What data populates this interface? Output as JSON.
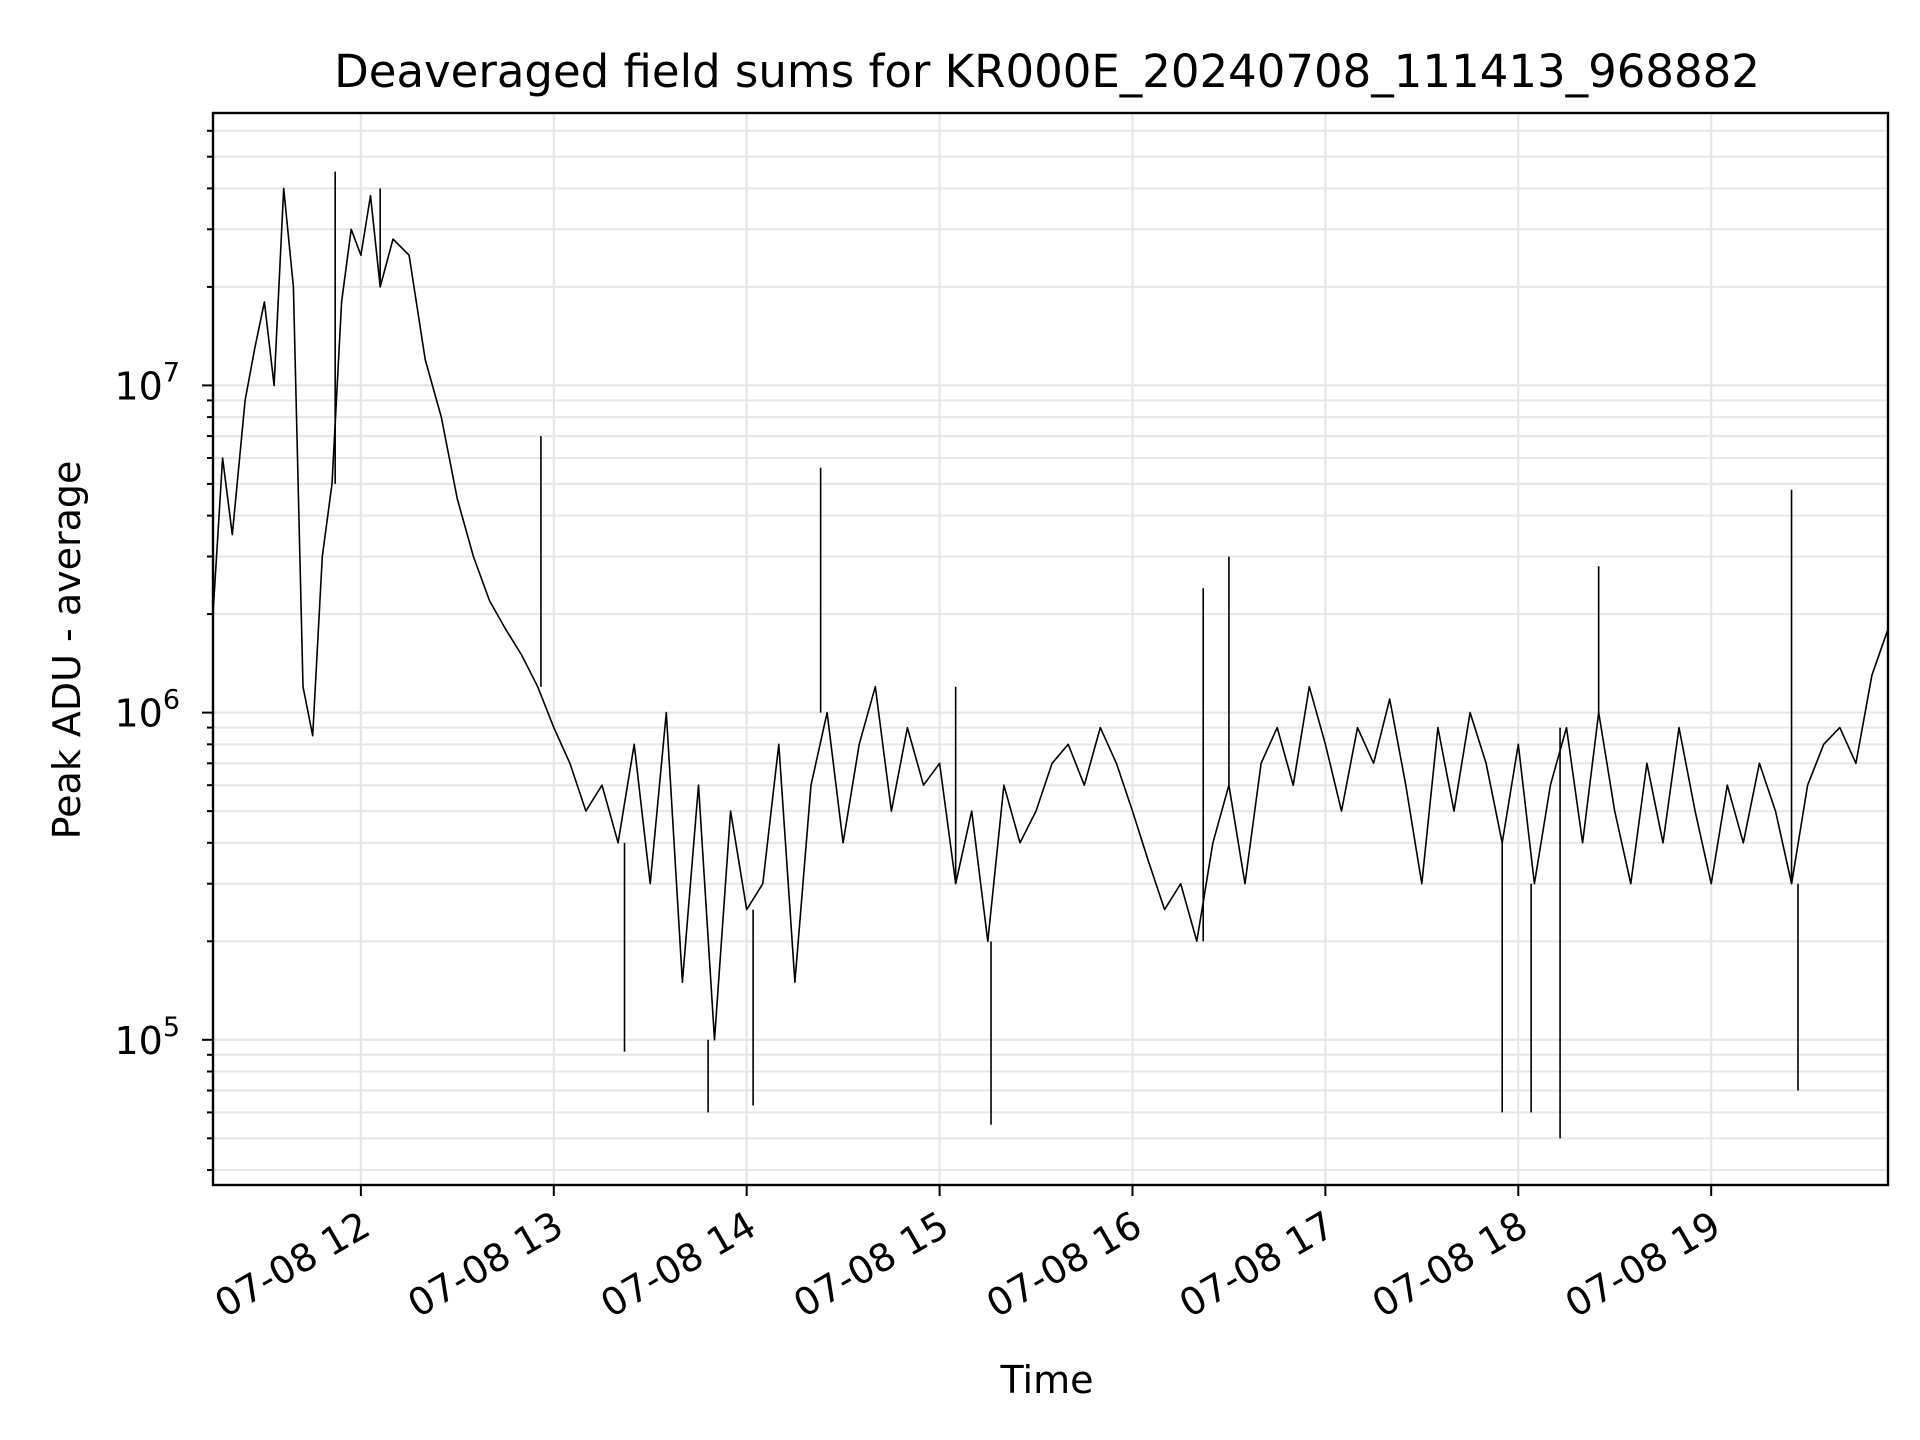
{
  "chart_data": {
    "type": "line",
    "title": "Deaveraged field sums for KR000E_20240708_111413_968882",
    "xlabel": "Time",
    "ylabel": "Peak ADU - average",
    "y_scale": "log",
    "x_range": [
      "07-08 11:14",
      "07-08 19:55"
    ],
    "ylim": [
      36000,
      68000000
    ],
    "grid": true,
    "legend": "none",
    "line_color": "#000000",
    "grid_color": "#e6e6e6",
    "x_ticks": [
      {
        "time": "07-08 12:00",
        "label": "07-08 12"
      },
      {
        "time": "07-08 13:00",
        "label": "07-08 13"
      },
      {
        "time": "07-08 14:00",
        "label": "07-08 14"
      },
      {
        "time": "07-08 15:00",
        "label": "07-08 15"
      },
      {
        "time": "07-08 16:00",
        "label": "07-08 16"
      },
      {
        "time": "07-08 17:00",
        "label": "07-08 17"
      },
      {
        "time": "07-08 18:00",
        "label": "07-08 18"
      },
      {
        "time": "07-08 19:00",
        "label": "07-08 19"
      }
    ],
    "y_ticks": [
      {
        "value": 100000,
        "base": "10",
        "exp": "5"
      },
      {
        "value": 1000000,
        "base": "10",
        "exp": "6"
      },
      {
        "value": 10000000,
        "base": "10",
        "exp": "7"
      }
    ],
    "series": [
      {
        "x": [
          "07-08 11:14",
          "07-08 11:17",
          "07-08 11:20",
          "07-08 11:24",
          "07-08 11:27",
          "07-08 11:30",
          "07-08 11:33",
          "07-08 11:36",
          "07-08 11:39",
          "07-08 11:42",
          "07-08 11:45",
          "07-08 11:48",
          "07-08 11:51",
          "07-08 11:54",
          "07-08 11:57",
          "07-08 12:00",
          "07-08 12:03",
          "07-08 12:06",
          "07-08 12:10",
          "07-08 12:15",
          "07-08 12:20",
          "07-08 12:25",
          "07-08 12:30",
          "07-08 12:35",
          "07-08 12:40",
          "07-08 12:45",
          "07-08 12:50",
          "07-08 12:55",
          "07-08 13:00",
          "07-08 13:05",
          "07-08 13:10",
          "07-08 13:15",
          "07-08 13:20",
          "07-08 13:25",
          "07-08 13:30",
          "07-08 13:35",
          "07-08 13:40",
          "07-08 13:45",
          "07-08 13:50",
          "07-08 13:55",
          "07-08 14:00",
          "07-08 14:05",
          "07-08 14:10",
          "07-08 14:15",
          "07-08 14:20",
          "07-08 14:25",
          "07-08 14:30",
          "07-08 14:35",
          "07-08 14:40",
          "07-08 14:45",
          "07-08 14:50",
          "07-08 14:55",
          "07-08 15:00",
          "07-08 15:05",
          "07-08 15:10",
          "07-08 15:15",
          "07-08 15:20",
          "07-08 15:25",
          "07-08 15:30",
          "07-08 15:35",
          "07-08 15:40",
          "07-08 15:45",
          "07-08 15:50",
          "07-08 15:55",
          "07-08 16:00",
          "07-08 16:05",
          "07-08 16:10",
          "07-08 16:15",
          "07-08 16:20",
          "07-08 16:25",
          "07-08 16:30",
          "07-08 16:35",
          "07-08 16:40",
          "07-08 16:45",
          "07-08 16:50",
          "07-08 16:55",
          "07-08 17:00",
          "07-08 17:05",
          "07-08 17:10",
          "07-08 17:15",
          "07-08 17:20",
          "07-08 17:25",
          "07-08 17:30",
          "07-08 17:35",
          "07-08 17:40",
          "07-08 17:45",
          "07-08 17:50",
          "07-08 17:55",
          "07-08 18:00",
          "07-08 18:05",
          "07-08 18:10",
          "07-08 18:15",
          "07-08 18:20",
          "07-08 18:25",
          "07-08 18:30",
          "07-08 18:35",
          "07-08 18:40",
          "07-08 18:45",
          "07-08 18:50",
          "07-08 18:55",
          "07-08 19:00",
          "07-08 19:05",
          "07-08 19:10",
          "07-08 19:15",
          "07-08 19:20",
          "07-08 19:25",
          "07-08 19:30",
          "07-08 19:35",
          "07-08 19:40",
          "07-08 19:45",
          "07-08 19:50",
          "07-08 19:55"
        ],
        "y": [
          2000000,
          6000000,
          3500000,
          9000000,
          13000000,
          18000000,
          10000000,
          40000000,
          20000000,
          1200000,
          850000,
          3000000,
          5000000,
          18000000,
          30000000,
          25000000,
          38000000,
          20000000,
          28000000,
          25000000,
          12000000,
          8000000,
          4500000,
          3000000,
          2200000,
          1800000,
          1500000,
          1200000,
          900000,
          700000,
          500000,
          600000,
          400000,
          800000,
          300000,
          1000000,
          150000,
          600000,
          100000,
          500000,
          250000,
          300000,
          800000,
          150000,
          600000,
          1000000,
          400000,
          800000,
          1200000,
          500000,
          900000,
          600000,
          700000,
          300000,
          500000,
          200000,
          600000,
          400000,
          500000,
          700000,
          800000,
          600000,
          900000,
          700000,
          500000,
          350000,
          250000,
          300000,
          200000,
          400000,
          600000,
          300000,
          700000,
          900000,
          600000,
          1200000,
          800000,
          500000,
          900000,
          700000,
          1100000,
          600000,
          300000,
          900000,
          500000,
          1000000,
          700000,
          400000,
          800000,
          300000,
          600000,
          900000,
          400000,
          1000000,
          500000,
          300000,
          700000,
          400000,
          900000,
          500000,
          300000,
          600000,
          400000,
          700000,
          500000,
          300000,
          600000,
          800000,
          900000,
          700000,
          1300000,
          1800000
        ]
      }
    ],
    "spikes": [
      {
        "x": "07-08 11:52",
        "y": 45000000
      },
      {
        "x": "07-08 12:06",
        "y": 40000000
      },
      {
        "x": "07-08 12:56",
        "y": 7000000
      },
      {
        "x": "07-08 13:22",
        "y": 92000
      },
      {
        "x": "07-08 13:48",
        "y": 60000
      },
      {
        "x": "07-08 14:02",
        "y": 63000
      },
      {
        "x": "07-08 14:23",
        "y": 5600000
      },
      {
        "x": "07-08 15:05",
        "y": 1200000
      },
      {
        "x": "07-08 15:16",
        "y": 55000
      },
      {
        "x": "07-08 16:22",
        "y": 2400000
      },
      {
        "x": "07-08 16:30",
        "y": 3000000
      },
      {
        "x": "07-08 17:55",
        "y": 60000
      },
      {
        "x": "07-08 18:04",
        "y": 60000
      },
      {
        "x": "07-08 18:13",
        "y": 50000
      },
      {
        "x": "07-08 18:25",
        "y": 2800000
      },
      {
        "x": "07-08 19:25",
        "y": 4800000
      },
      {
        "x": "07-08 19:27",
        "y": 70000
      }
    ]
  }
}
